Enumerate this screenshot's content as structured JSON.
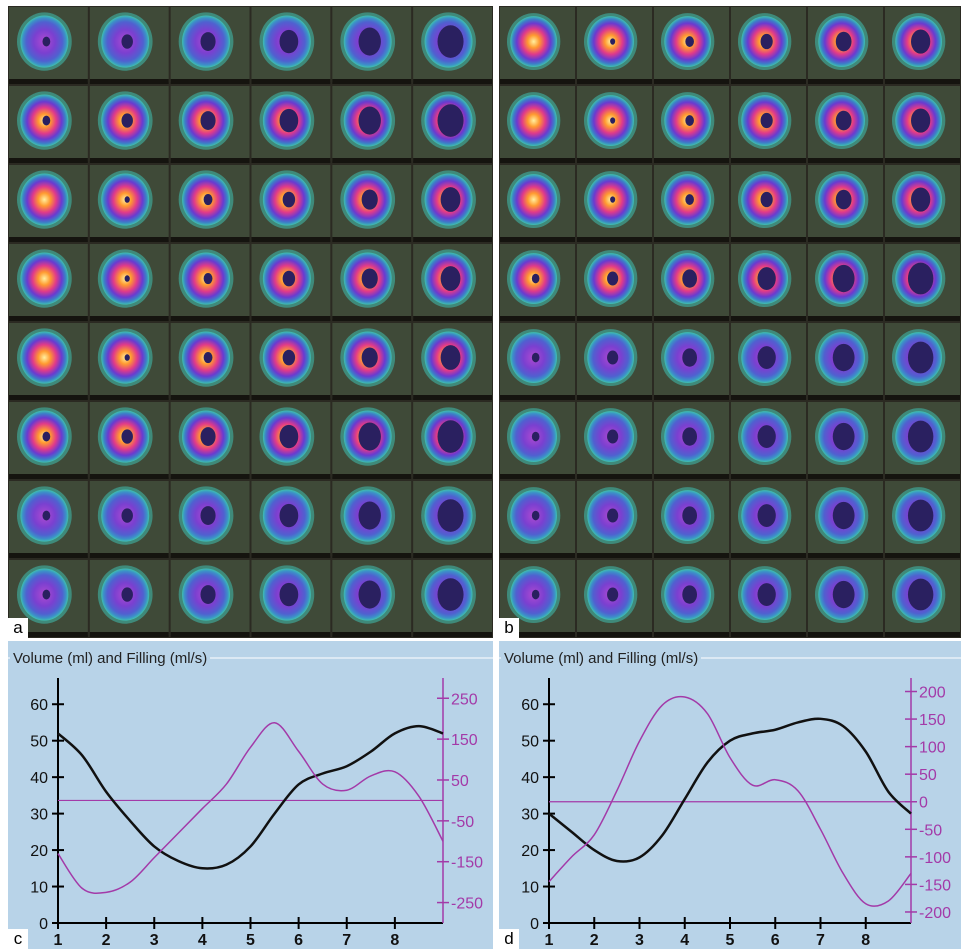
{
  "panels": {
    "a": {
      "label": "a"
    },
    "b": {
      "label": "b"
    },
    "c": {
      "label": "c"
    },
    "d": {
      "label": "d"
    }
  },
  "grid": {
    "rows": 8,
    "cols": 6
  },
  "colors": {
    "volume_line": "#111111",
    "filling_line": "#a33aa8",
    "right_axis": "#a33aa8",
    "plot_background": "#b8d3e8",
    "scan_background": "#2b2a22"
  },
  "chart_data": [
    {
      "type": "line",
      "panel": "c",
      "title": "Volume (ml) and Filling (ml/s)",
      "xlim": [
        1,
        9
      ],
      "x_ticks": [
        "1",
        "2",
        "3",
        "4",
        "5",
        "6",
        "7",
        "8"
      ],
      "ylim_left": [
        0,
        65
      ],
      "y_ticks_left": [
        "0",
        "10",
        "20",
        "30",
        "40",
        "50",
        "60"
      ],
      "ylim_right": [
        -300,
        280
      ],
      "y_ticks_right": [
        "250",
        "150",
        "50",
        "-50",
        "-150",
        "-250"
      ],
      "zero_line_right": 0,
      "series": [
        {
          "axis": "left",
          "color": "#111111",
          "x": [
            1,
            1.5,
            2,
            2.5,
            3,
            3.5,
            4,
            4.5,
            5,
            5.5,
            6,
            6.5,
            7,
            7.5,
            8,
            8.5,
            9
          ],
          "values": [
            52,
            46,
            36,
            28,
            21,
            17,
            15,
            16,
            21,
            30,
            38,
            41,
            43,
            47,
            52,
            54,
            52
          ]
        },
        {
          "axis": "right",
          "color": "#a33aa8",
          "x": [
            1,
            1.5,
            2,
            2.5,
            3,
            3.5,
            4,
            4.5,
            5,
            5.5,
            6,
            6.5,
            7,
            7.5,
            8,
            8.5,
            9
          ],
          "values": [
            -130,
            -215,
            -225,
            -200,
            -140,
            -80,
            -20,
            40,
            130,
            190,
            120,
            40,
            25,
            60,
            70,
            10,
            -100
          ]
        }
      ]
    },
    {
      "type": "line",
      "panel": "d",
      "title": "Volume (ml) and Filling (ml/s)",
      "xlim": [
        1,
        9
      ],
      "x_ticks": [
        "1",
        "2",
        "3",
        "4",
        "5",
        "6",
        "7",
        "8"
      ],
      "ylim_left": [
        0,
        65
      ],
      "y_ticks_left": [
        "0",
        "10",
        "20",
        "30",
        "40",
        "50",
        "60"
      ],
      "ylim_right": [
        -220,
        210
      ],
      "y_ticks_right": [
        "200",
        "150",
        "100",
        "50",
        "0",
        "-50",
        "-100",
        "-150",
        "-200"
      ],
      "zero_line_right": 0,
      "series": [
        {
          "axis": "left",
          "color": "#111111",
          "x": [
            1,
            1.5,
            2,
            2.5,
            3,
            3.5,
            4,
            4.5,
            5,
            5.5,
            6,
            6.5,
            7,
            7.5,
            8,
            8.5,
            9
          ],
          "values": [
            30,
            25,
            20,
            17,
            18,
            24,
            34,
            44,
            50,
            52,
            53,
            55,
            56,
            54,
            47,
            36,
            30
          ]
        },
        {
          "axis": "right",
          "color": "#a33aa8",
          "x": [
            1,
            1.5,
            2,
            2.5,
            3,
            3.5,
            4,
            4.5,
            5,
            5.5,
            6,
            6.5,
            7,
            7.5,
            8,
            8.5,
            9
          ],
          "values": [
            -145,
            -100,
            -60,
            20,
            110,
            175,
            190,
            160,
            80,
            30,
            40,
            20,
            -50,
            -130,
            -185,
            -180,
            -130
          ]
        }
      ]
    }
  ]
}
